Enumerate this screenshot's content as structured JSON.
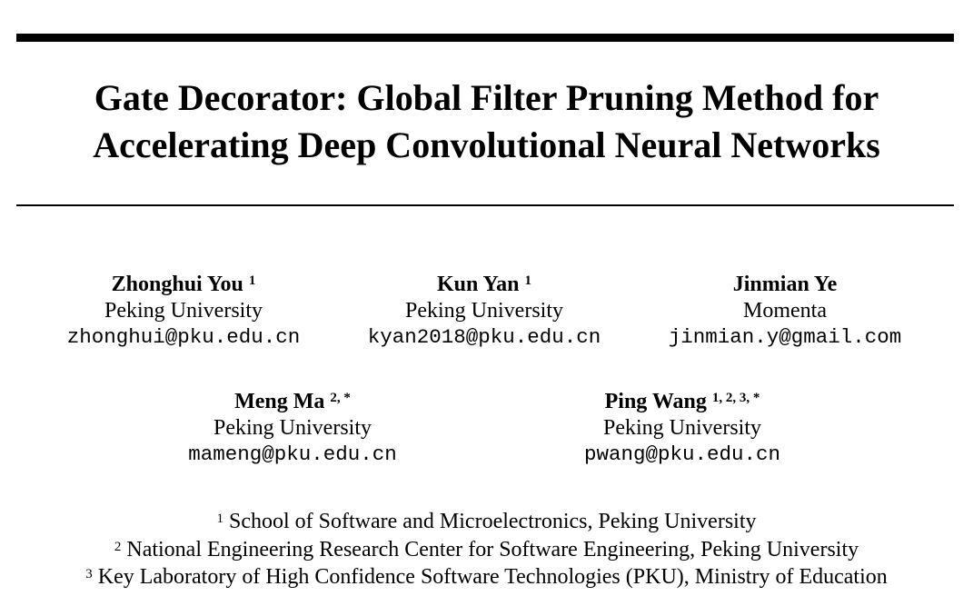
{
  "title": {
    "line1": "Gate Decorator: Global Filter Pruning Method for",
    "line2": "Accelerating Deep Convolutional Neural Networks"
  },
  "authors": [
    {
      "name": "Zhonghui You",
      "sup": "1",
      "affiliation": "Peking University",
      "email": "zhonghui@pku.edu.cn"
    },
    {
      "name": "Kun Yan",
      "sup": "1",
      "affiliation": "Peking University",
      "email": "kyan2018@pku.edu.cn"
    },
    {
      "name": "Jinmian Ye",
      "sup": "",
      "affiliation": "Momenta",
      "email": "jinmian.y@gmail.com"
    },
    {
      "name": "Meng Ma",
      "sup": "2, *",
      "affiliation": "Peking University",
      "email": "mameng@pku.edu.cn"
    },
    {
      "name": "Ping Wang",
      "sup": "1, 2, 3, *",
      "affiliation": "Peking University",
      "email": "pwang@pku.edu.cn"
    }
  ],
  "footnotes": [
    {
      "mark": "1",
      "text": "School of Software and Microelectronics, Peking University"
    },
    {
      "mark": "2",
      "text": "National Engineering Research Center for Software Engineering, Peking University"
    },
    {
      "mark": "3",
      "text": "Key Laboratory of High Confidence Software Technologies (PKU), Ministry of Education"
    }
  ]
}
